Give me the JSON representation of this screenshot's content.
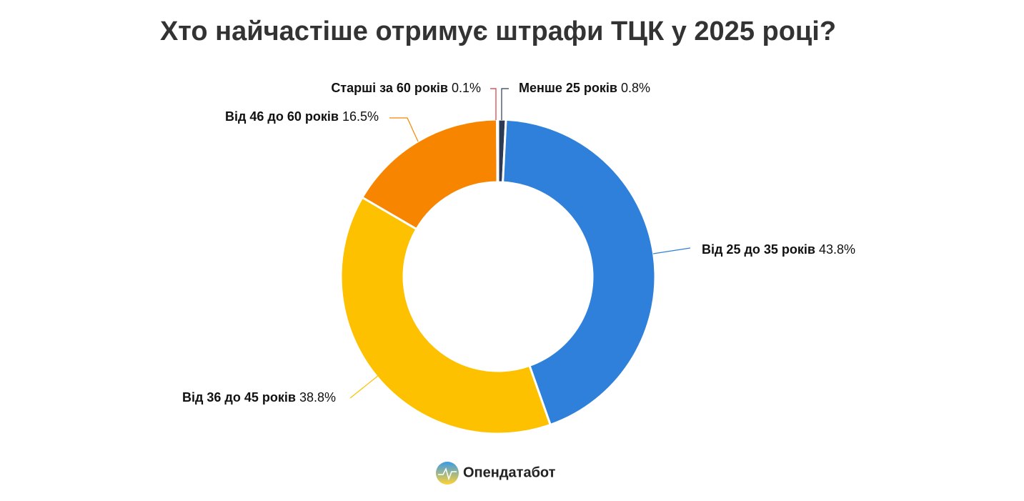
{
  "chart_data": {
    "type": "pie",
    "title": "Хто найчастіше отримує штрафи ТЦК у 2025 році?",
    "categories": [
      "Менше 25 років",
      "Від 25 до 35 років",
      "Від 36 до 45 років",
      "Від 46 до 60 років",
      "Старші за 60 років"
    ],
    "values": [
      0.8,
      43.8,
      38.8,
      16.5,
      0.1
    ],
    "value_labels": [
      "0.8%",
      "43.8%",
      "38.8%",
      "16.5%",
      "0.1%"
    ],
    "colors": [
      "#2b3a55",
      "#2f80da",
      "#fdc100",
      "#f78500",
      "#d9363e"
    ],
    "brand": "Опендатабот"
  }
}
